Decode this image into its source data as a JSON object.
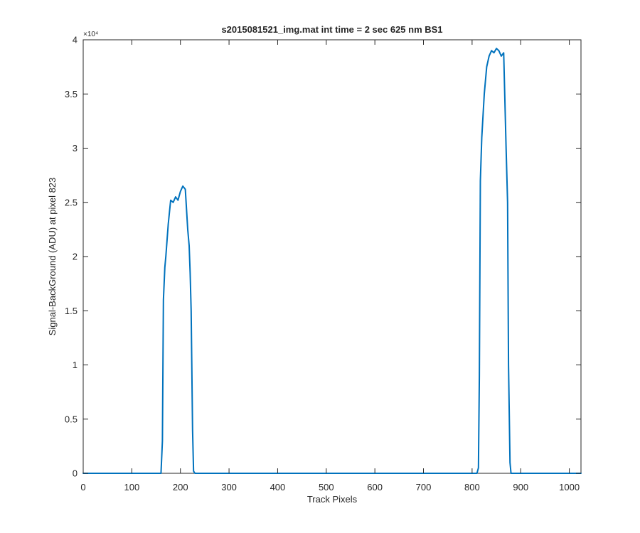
{
  "chart_data": {
    "type": "line",
    "title": "s2015081521_img.mat int time = 2 sec  625 nm BS1",
    "xlabel": "Track Pixels",
    "ylabel": "Signal-BackGround (ADU) at pixel 823",
    "y_multiplier_label": "×10⁴",
    "xlim": [
      0,
      1024
    ],
    "ylim": [
      0,
      4
    ],
    "y_scale_factor": 10000,
    "xticks": [
      0,
      100,
      200,
      300,
      400,
      500,
      600,
      700,
      800,
      900,
      1000
    ],
    "xtick_labels": [
      "0",
      "100",
      "200",
      "300",
      "400",
      "500",
      "600",
      "700",
      "800",
      "900",
      "1000"
    ],
    "yticks": [
      0,
      0.5,
      1,
      1.5,
      2,
      2.5,
      3,
      3.5,
      4
    ],
    "ytick_labels": [
      "0",
      "0.5",
      "1",
      "1.5",
      "2",
      "2.5",
      "3",
      "3.5",
      "4"
    ],
    "grid": false,
    "line_color": "#0072BD",
    "series": [
      {
        "x": [
          0,
          100,
          160,
          163,
          165,
          168,
          170,
          175,
          180,
          185,
          190,
          195,
          200,
          205,
          210,
          215,
          218,
          220,
          222,
          225,
          227,
          230,
          300,
          400,
          500,
          600,
          700,
          800,
          810,
          813,
          815,
          817,
          820,
          825,
          830,
          835,
          840,
          845,
          850,
          855,
          860,
          865,
          870,
          873,
          875,
          878,
          880,
          900,
          1000,
          1024
        ],
        "y": [
          0,
          0,
          0,
          0.3,
          1.6,
          1.9,
          2.0,
          2.3,
          2.52,
          2.5,
          2.55,
          2.52,
          2.6,
          2.65,
          2.62,
          2.25,
          2.1,
          1.85,
          1.5,
          0.4,
          0.02,
          0,
          0,
          0,
          0,
          0,
          0,
          0,
          0,
          0.05,
          0.9,
          2.7,
          3.1,
          3.5,
          3.75,
          3.85,
          3.9,
          3.88,
          3.92,
          3.9,
          3.85,
          3.88,
          3.0,
          2.5,
          1.0,
          0.1,
          0,
          0,
          0,
          0
        ]
      }
    ]
  }
}
